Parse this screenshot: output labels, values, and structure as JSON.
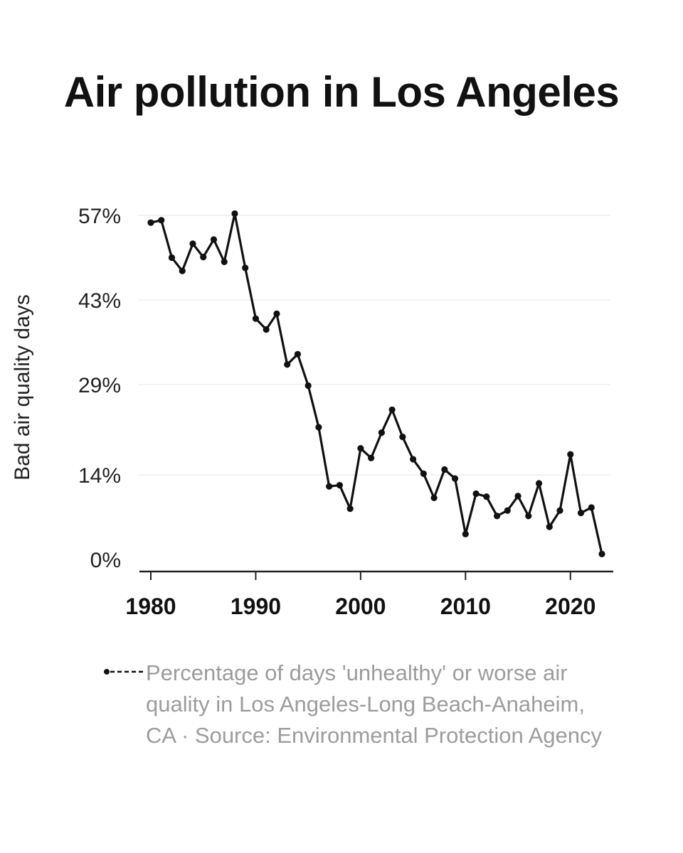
{
  "title": "Air pollution in Los Angeles",
  "legend": {
    "text": "Percentage of days 'unhealthy' or worse air quality in Los Angeles-Long Beach-Anaheim, CA · Source: Environmental Protection Agency"
  },
  "colors": {
    "line": "#111111",
    "grid": "#eeeeee",
    "axis": "#222222",
    "legend_text": "#9c9c9c"
  },
  "chart_data": {
    "type": "line",
    "title": "Air pollution in Los Angeles",
    "xlabel": "",
    "ylabel": "Bad air quality days",
    "xlim": [
      1980,
      2023
    ],
    "ylim": [
      0,
      57
    ],
    "x_ticks": [
      1980,
      1990,
      2000,
      2010,
      2020
    ],
    "y_ticks": [
      0,
      14,
      29,
      43,
      57
    ],
    "y_tick_labels": [
      "0%",
      "14%",
      "29%",
      "43%",
      "57%"
    ],
    "grid": true,
    "legend_position": "bottom",
    "series": [
      {
        "name": "Percentage of days 'unhealthy' or worse air quality in Los Angeles-Long Beach-Anaheim, CA · Source: Environmental Protection Agency",
        "x": [
          1980,
          1981,
          1982,
          1983,
          1984,
          1985,
          1986,
          1987,
          1988,
          1989,
          1990,
          1991,
          1992,
          1993,
          1994,
          1995,
          1996,
          1997,
          1998,
          1999,
          2000,
          2001,
          2002,
          2003,
          2004,
          2005,
          2006,
          2007,
          2008,
          2009,
          2010,
          2011,
          2012,
          2013,
          2014,
          2015,
          2016,
          2017,
          2018,
          2019,
          2020,
          2021,
          2022,
          2023
        ],
        "values": [
          55.8,
          56.2,
          50,
          47.8,
          52.3,
          50.1,
          53,
          49.3,
          57.3,
          48.3,
          39.9,
          38.1,
          40.7,
          32.3,
          34,
          28.8,
          21.9,
          12.1,
          12.3,
          8.4,
          18.4,
          16.8,
          21,
          24.8,
          20.3,
          16.6,
          14.2,
          10.2,
          14.9,
          13.4,
          4.2,
          10.9,
          10.4,
          7.2,
          8.1,
          10.5,
          7.2,
          12.6,
          5.4,
          8.1,
          17.4,
          7.7,
          8.6,
          0.9
        ]
      }
    ]
  }
}
